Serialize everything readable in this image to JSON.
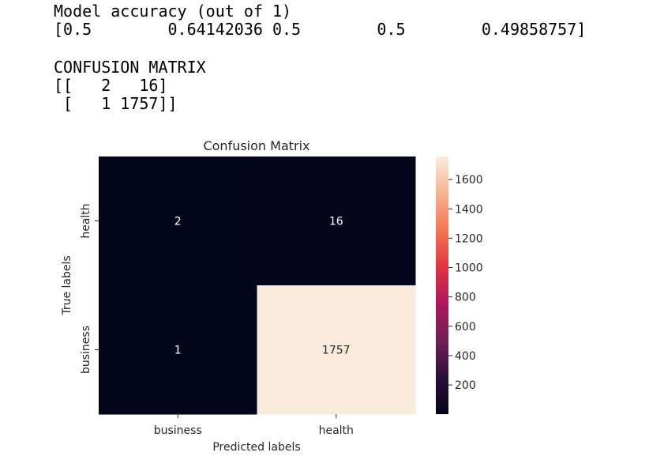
{
  "console": {
    "accuracy_title": "Model accuracy (out of 1)",
    "accuracy_values": "[0.5        0.64142036 0.5        0.5        0.49858757]",
    "cm_title": "CONFUSION MATRIX",
    "cm_row_0": "[[   2   16]",
    "cm_row_1": " [   1 1757]]"
  },
  "chart_data": {
    "type": "heatmap",
    "title": "Confusion Matrix",
    "xlabel": "Predicted labels",
    "ylabel": "True labels",
    "x_categories": [
      "business",
      "health"
    ],
    "y_categories": [
      "health",
      "business"
    ],
    "values": [
      [
        2,
        16
      ],
      [
        1,
        1757
      ]
    ],
    "colorbar": {
      "range": [
        1,
        1757
      ],
      "ticks": [
        200,
        400,
        600,
        800,
        1000,
        1200,
        1400,
        1600
      ],
      "colors": [
        "#03051a",
        "#2b0f38",
        "#701f57",
        "#ad1759",
        "#e13342",
        "#f37651",
        "#f6b48f",
        "#faebdd"
      ]
    },
    "annotation_colors": {
      "dark_cell": "#ffffff",
      "light_cell": "#262626"
    }
  }
}
